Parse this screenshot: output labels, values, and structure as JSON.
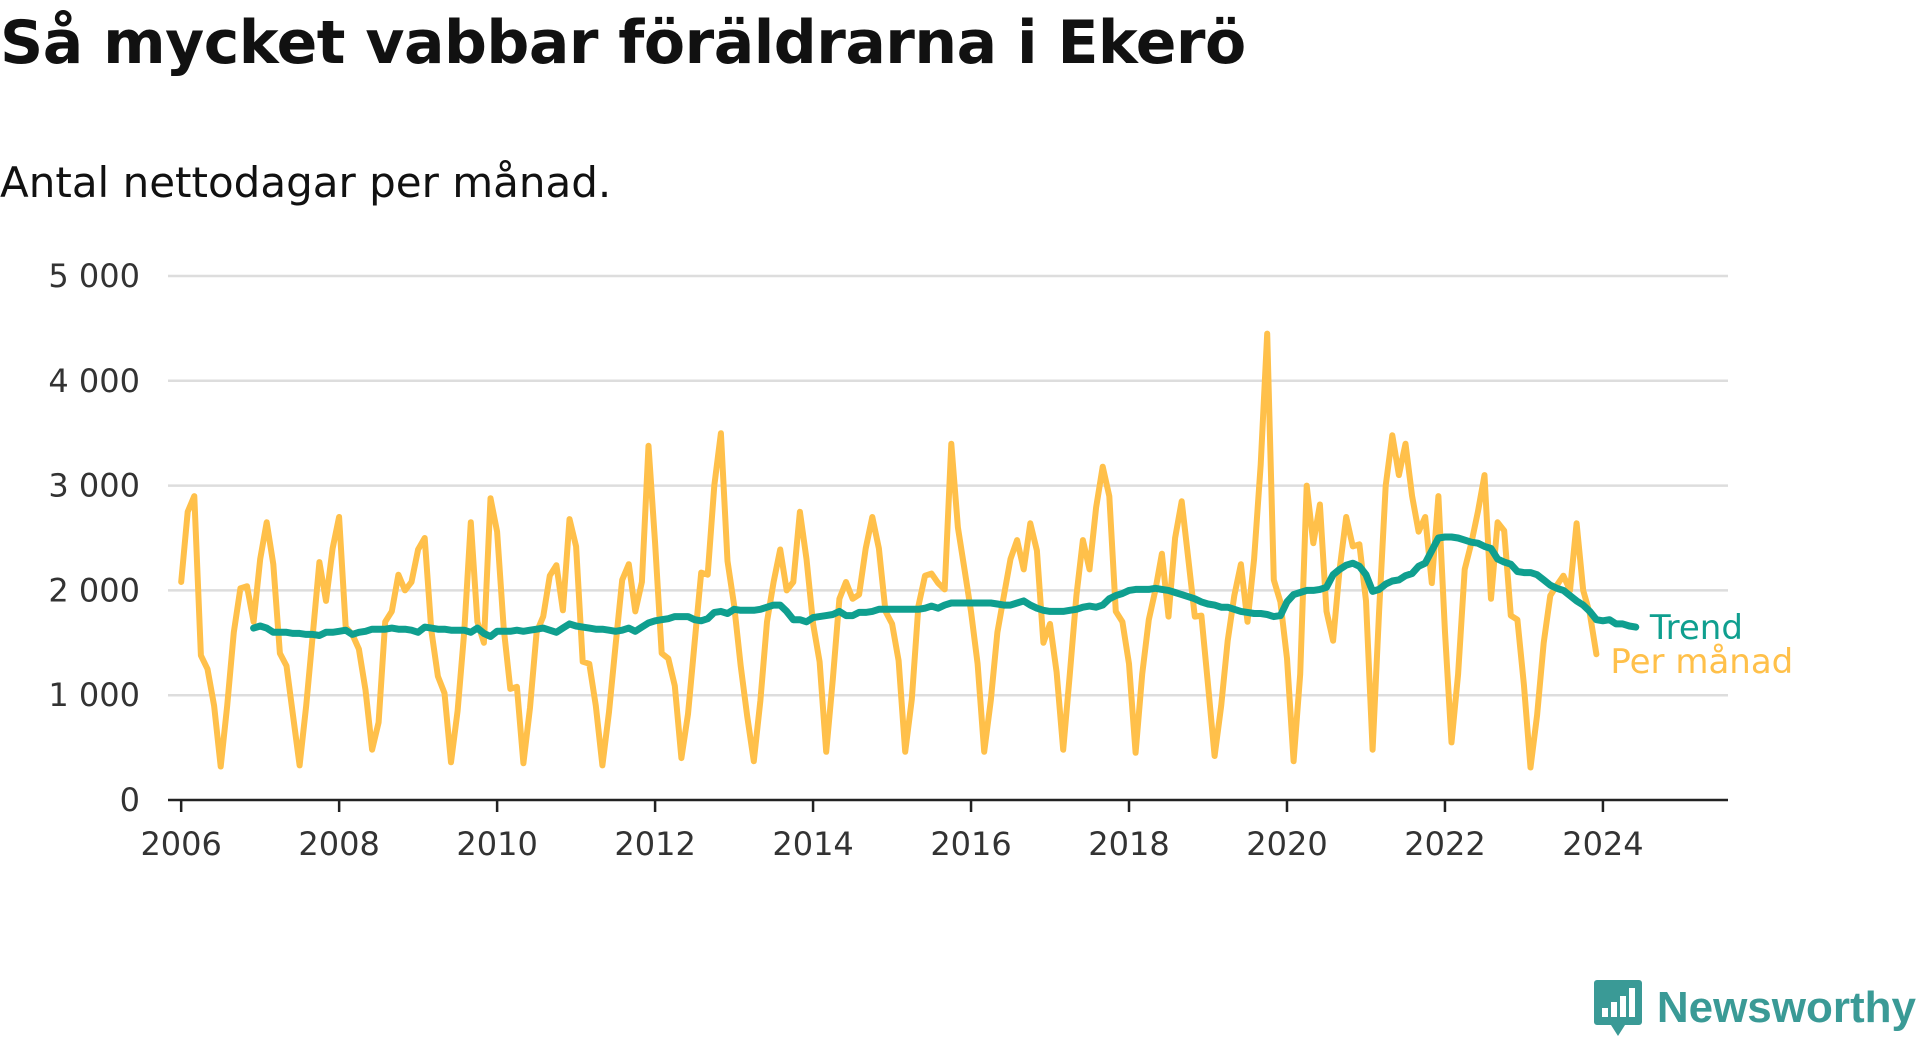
{
  "header": {
    "title": "Så mycket vabbar föräldrarna i Ekerö",
    "subtitle": "Antal nettodagar per månad."
  },
  "brand": {
    "name": "Newsworthy",
    "color": "#3a9a96",
    "icon": "newsworthy-logo-icon"
  },
  "colors": {
    "monthly": "#ffc04a",
    "trend": "#0f9f8f",
    "grid": "#dddddd",
    "axis": "#222222"
  },
  "chart_data": {
    "type": "line",
    "title": "Så mycket vabbar föräldrarna i Ekerö",
    "subtitle": "Antal nettodagar per månad.",
    "xlabel": "",
    "ylabel": "",
    "ylim": [
      0,
      5000
    ],
    "xlim": [
      "2005-11",
      "2025-08"
    ],
    "y_ticks": [
      0,
      1000,
      2000,
      3000,
      4000,
      5000
    ],
    "y_tick_labels": [
      "0",
      "1 000",
      "2 000",
      "3 000",
      "4 000",
      "5 000"
    ],
    "x_ticks": [
      "2006-01",
      "2008-01",
      "2010-01",
      "2012-01",
      "2014-01",
      "2016-01",
      "2018-01",
      "2020-01",
      "2022-01",
      "2024-01"
    ],
    "x_tick_labels": [
      "2006",
      "2008",
      "2010",
      "2012",
      "2014",
      "2016",
      "2018",
      "2020",
      "2022",
      "2024"
    ],
    "grid": true,
    "legend": "direct labels at line ends",
    "series": [
      {
        "name": "Per månad",
        "color": "#ffc04a",
        "start": "2006-01",
        "values": [
          2080,
          2750,
          2900,
          1380,
          1250,
          900,
          320,
          900,
          1600,
          2020,
          2040,
          1700,
          2300,
          2650,
          2250,
          1400,
          1280,
          800,
          330,
          900,
          1580,
          2270,
          1900,
          2400,
          2700,
          1650,
          1580,
          1440,
          1050,
          480,
          740,
          1700,
          1800,
          2150,
          2000,
          2080,
          2390,
          2500,
          1620,
          1180,
          1020,
          360,
          850,
          1600,
          2650,
          1700,
          1500,
          2880,
          2560,
          1640,
          1060,
          1080,
          350,
          880,
          1600,
          1750,
          2140,
          2240,
          1810,
          2680,
          2420,
          1320,
          1300,
          900,
          330,
          840,
          1480,
          2100,
          2250,
          1800,
          2080,
          3380,
          2450,
          1400,
          1350,
          1090,
          400,
          820,
          1500,
          2170,
          2150,
          3000,
          3500,
          2280,
          1860,
          1280,
          800,
          370,
          950,
          1700,
          2080,
          2390,
          2000,
          2080,
          2750,
          2300,
          1680,
          1320,
          460,
          1150,
          1920,
          2080,
          1920,
          1960,
          2400,
          2700,
          2400,
          1800,
          1680,
          1330,
          460,
          960,
          1850,
          2140,
          2160,
          2070,
          2010,
          3400,
          2600,
          2200,
          1800,
          1300,
          460,
          950,
          1600,
          1950,
          2300,
          2480,
          2200,
          2640,
          2380,
          1500,
          1680,
          1220,
          480,
          1200,
          1950,
          2480,
          2200,
          2790,
          3180,
          2900,
          1800,
          1700,
          1300,
          450,
          1200,
          1720,
          2000,
          2350,
          1750,
          2500,
          2850,
          2300,
          1750,
          1760,
          1100,
          420,
          900,
          1520,
          1950,
          2250,
          1700,
          2300,
          3200,
          4450,
          2100,
          1890,
          1350,
          370,
          1200,
          3000,
          2450,
          2820,
          1800,
          1520,
          2200,
          2700,
          2420,
          2440,
          1900,
          480,
          1800,
          3000,
          3480,
          3100,
          3400,
          2900,
          2560,
          2700,
          2070,
          2900,
          1600,
          550,
          1200,
          2200,
          2450,
          2750,
          3100,
          1920,
          2650,
          2570,
          1760,
          1720,
          1100,
          310,
          810,
          1500,
          1950,
          2050,
          2140,
          2000,
          2640,
          2000,
          1780,
          1390
        ]
      },
      {
        "name": "Trend",
        "color": "#0f9f8f",
        "start": "2006-12",
        "values": [
          1640,
          1660,
          1640,
          1600,
          1600,
          1600,
          1590,
          1590,
          1580,
          1580,
          1570,
          1600,
          1600,
          1610,
          1620,
          1580,
          1600,
          1610,
          1630,
          1630,
          1630,
          1640,
          1630,
          1630,
          1620,
          1600,
          1650,
          1640,
          1630,
          1630,
          1620,
          1620,
          1620,
          1600,
          1640,
          1590,
          1560,
          1610,
          1610,
          1610,
          1620,
          1610,
          1620,
          1630,
          1640,
          1620,
          1600,
          1640,
          1680,
          1660,
          1650,
          1640,
          1630,
          1630,
          1620,
          1610,
          1620,
          1640,
          1610,
          1650,
          1690,
          1710,
          1720,
          1730,
          1750,
          1750,
          1750,
          1720,
          1710,
          1730,
          1790,
          1800,
          1780,
          1820,
          1810,
          1810,
          1810,
          1820,
          1840,
          1860,
          1860,
          1800,
          1720,
          1720,
          1700,
          1740,
          1750,
          1760,
          1770,
          1800,
          1760,
          1760,
          1790,
          1790,
          1800,
          1820,
          1820,
          1820,
          1820,
          1820,
          1820,
          1820,
          1830,
          1850,
          1830,
          1860,
          1880,
          1880,
          1880,
          1880,
          1880,
          1880,
          1880,
          1870,
          1860,
          1860,
          1880,
          1900,
          1860,
          1830,
          1810,
          1800,
          1800,
          1800,
          1810,
          1820,
          1840,
          1850,
          1840,
          1860,
          1920,
          1950,
          1970,
          2000,
          2010,
          2010,
          2010,
          2020,
          2010,
          2000,
          1980,
          1960,
          1940,
          1920,
          1890,
          1870,
          1860,
          1840,
          1840,
          1820,
          1800,
          1790,
          1780,
          1780,
          1770,
          1750,
          1760,
          1890,
          1960,
          1980,
          2000,
          2000,
          2010,
          2030,
          2150,
          2200,
          2240,
          2260,
          2230,
          2150,
          1990,
          2010,
          2060,
          2090,
          2100,
          2140,
          2160,
          2230,
          2260,
          2380,
          2500,
          2510,
          2510,
          2500,
          2480,
          2460,
          2450,
          2420,
          2400,
          2300,
          2270,
          2250,
          2180,
          2170,
          2170,
          2150,
          2100,
          2050,
          2020,
          2000,
          1950,
          1900,
          1860,
          1800,
          1720,
          1710,
          1720,
          1680,
          1680,
          1660,
          1650
        ]
      }
    ]
  }
}
